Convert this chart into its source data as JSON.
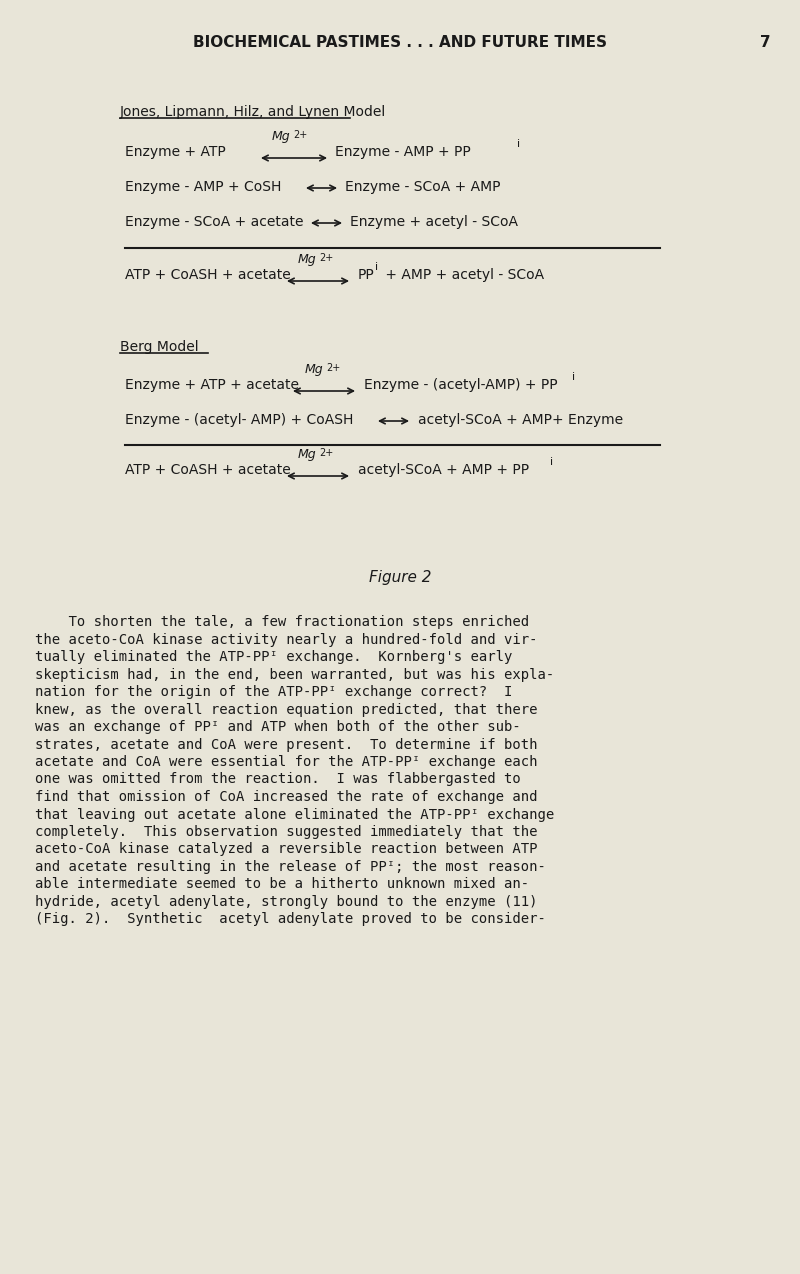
{
  "bg_color": "#e8e5d8",
  "text_color": "#1a1a1a",
  "page_title": "BIOCHEMICAL PASTIMES . . . AND FUTURE TIMES",
  "page_number": "7",
  "section1_title": "Jones, Lipmann, Hilz, and Lynen Model",
  "section1_eq1_left": "Enzyme + ATP",
  "section1_eq1_mg": "Mg",
  "section1_eq1_right": "Enzyme - AMP + PP",
  "section1_eq1_sub": "i",
  "section1_eq2": "Enzyme - AMP + CoSH ⟶ Enzyme - SCoA + AMP",
  "section1_eq3": "Enzyme - SCoA + acetate ⟶ Enzyme + acetyl - SCoA",
  "section1_overall_left": "ATP + CoASH + acetate",
  "section1_overall_mg": "Mg",
  "section1_overall_right": "PP",
  "section1_overall_right2": " + AMP + acetyl - SCoA",
  "section1_overall_sub": "i",
  "section2_title": "Berg Model",
  "section2_eq1_left": "Enzyme + ATP + acetate",
  "section2_eq1_mg": "Mg",
  "section2_eq1_right": "Enzyme - (acetyl-AMP) + PP",
  "section2_eq1_sub": "i",
  "section2_eq2": "Enzyme - (acetyl- AMP) + CoASH ⟶ acetyl-SCoA + AMP+ Enzyme",
  "section2_overall_left": "ATP + CoASH + acetate",
  "section2_overall_mg": "Mg",
  "section2_overall_right": "acetyl-SCoA + AMP + PP",
  "section2_overall_sub": "i",
  "figure_label": "Figure 2",
  "body_text": [
    "    To shorten the tale, a few fractionation steps enriched",
    "the aceto-CoA kinase activity nearly a hundred-fold and vir-",
    "tually eliminated the ATP-PPᴵ exchange.  Kornberg's early",
    "skepticism had, in the end, been warranted, but was his expla-",
    "nation for the origin of the ATP-PPᴵ exchange correct?  I",
    "knew, as the overall reaction equation predicted, that there",
    "was an exchange of PPᴵ and ATP when both of the other sub-",
    "strates, acetate and CoA were present.  To determine if both",
    "acetate and CoA were essential for the ATP-PPᴵ exchange each",
    "one was omitted from the reaction.  I was flabbergasted to",
    "find that omission of CoA increased the rate of exchange and",
    "that leaving out acetate alone eliminated the ATP-PPᴵ exchange",
    "completely.  This observation suggested immediately that the",
    "aceto-CoA kinase catalyzed a reversible reaction between ATP",
    "and acetate resulting in the release of PPᴵ; the most reason-",
    "able intermediate seemed to be a hitherto unknown mixed an-",
    "hydride, acetyl adenylate, strongly bound to the enzyme (11)",
    "(Fig. 2).  Synthetic  acetyl adenylate proved to be consider-"
  ]
}
